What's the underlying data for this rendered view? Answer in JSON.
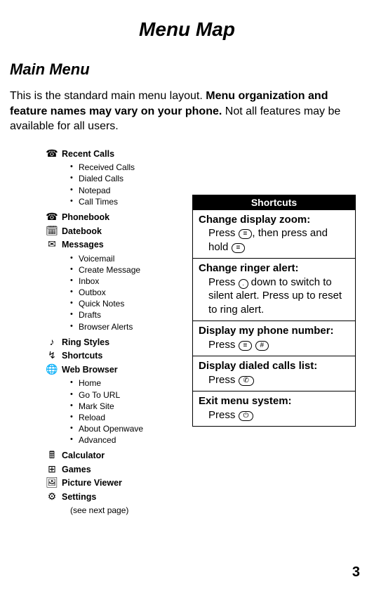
{
  "title": "Menu Map",
  "section_heading": "Main Menu",
  "intro": {
    "pre": "This is the standard main menu layout. ",
    "bold": "Menu organization and feature names may vary on your phone.",
    "post": " Not all features may be available for all users."
  },
  "menu": [
    {
      "icon": "☎",
      "label": "Recent Calls",
      "sub": [
        "Received Calls",
        "Dialed Calls",
        "Notepad",
        "Call Times"
      ]
    },
    {
      "icon": "☎",
      "label": "Phonebook"
    },
    {
      "icon": "🗓",
      "label": "Datebook"
    },
    {
      "icon": "✉",
      "label": "Messages",
      "sub": [
        "Voicemail",
        "Create Message",
        "Inbox",
        "Outbox",
        "Quick Notes",
        "Drafts",
        "Browser Alerts"
      ]
    },
    {
      "icon": "♪",
      "label": "Ring Styles"
    },
    {
      "icon": "↯",
      "label": "Shortcuts"
    },
    {
      "icon": "🌐",
      "label": "Web Browser",
      "sub": [
        "Home",
        "Go To URL",
        "Mark Site",
        "Reload",
        "About Openwave",
        "Advanced"
      ]
    },
    {
      "icon": "🖩",
      "label": "Calculator"
    },
    {
      "icon": "⊞",
      "label": "Games"
    },
    {
      "icon": "🖼",
      "label": "Picture Viewer"
    },
    {
      "icon": "⚙",
      "label": "Settings",
      "note": "(see next page)"
    }
  ],
  "shortcuts": {
    "header": "Shortcuts",
    "rows": [
      {
        "title": "Change display zoom:",
        "body_parts": [
          "Press ",
          {
            "key": "≡"
          },
          ", then press and hold ",
          {
            "key": "≡"
          }
        ]
      },
      {
        "title": "Change ringer alert:",
        "body_parts": [
          "Press ",
          {
            "circle": "·"
          },
          " down to switch to silent alert. Press up to reset to ring alert."
        ]
      },
      {
        "title": "Display my phone number:",
        "body_parts": [
          "Press ",
          {
            "key": "≡"
          },
          " ",
          {
            "key": "#"
          }
        ]
      },
      {
        "title": "Display dialed calls list:",
        "body_parts": [
          "Press ",
          {
            "key": "✆"
          }
        ]
      },
      {
        "title": "Exit menu system:",
        "body_parts": [
          "Press ",
          {
            "key": "⏻"
          }
        ]
      }
    ]
  },
  "page_number": "3"
}
